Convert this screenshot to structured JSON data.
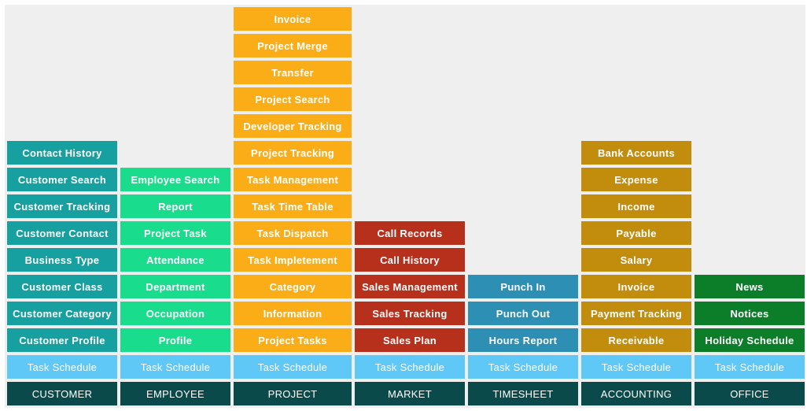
{
  "columns": [
    {
      "header": "CUSTOMER",
      "schedule": "Task Schedule",
      "items": [
        "Contact History",
        "Customer Search",
        "Customer Tracking",
        "Customer Contact",
        "Business Type",
        "Customer Class",
        "Customer Category",
        "Customer Profile"
      ],
      "color": "#16a0a0"
    },
    {
      "header": "EMPLOYEE",
      "schedule": "Task Schedule",
      "items": [
        "Employee Search",
        "Report",
        "Project Task",
        "Attendance",
        "Department",
        "Occupation",
        "Profile"
      ],
      "color": "#19dc8c"
    },
    {
      "header": "PROJECT",
      "schedule": "Task Schedule",
      "items": [
        "Invoice",
        "Project Merge",
        "Transfer",
        "Project Search",
        "Developer Tracking",
        "Project Tracking",
        "Task Management",
        "Task Time Table",
        "Task Dispatch",
        "Task Impletement",
        "Category",
        "Information",
        "Project Tasks"
      ],
      "color": "#fbad18"
    },
    {
      "header": "MARKET",
      "schedule": "Task Schedule",
      "items": [
        "Call Records",
        "Call History",
        "Sales Management",
        "Sales Tracking",
        "Sales Plan"
      ],
      "color": "#b7301c"
    },
    {
      "header": "TIMESHEET",
      "schedule": "Task Schedule",
      "items": [
        "Punch In",
        "Punch Out",
        "Hours Report"
      ],
      "color": "#2d8fb3"
    },
    {
      "header": "ACCOUNTING",
      "schedule": "Task Schedule",
      "items": [
        "Bank Accounts",
        "Expense",
        "Income",
        "Payable",
        "Salary",
        "Invoice",
        "Payment Tracking",
        "Receivable"
      ],
      "color": "#c28d0c"
    },
    {
      "header": "OFFICE",
      "schedule": "Task Schedule",
      "items": [
        "News",
        "Notices",
        "Holiday Schedule"
      ],
      "color": "#0c7e2a"
    }
  ],
  "colors": {
    "schedule": "#5fc8f6",
    "header": "#0b4a4a",
    "background": "#efefef"
  }
}
